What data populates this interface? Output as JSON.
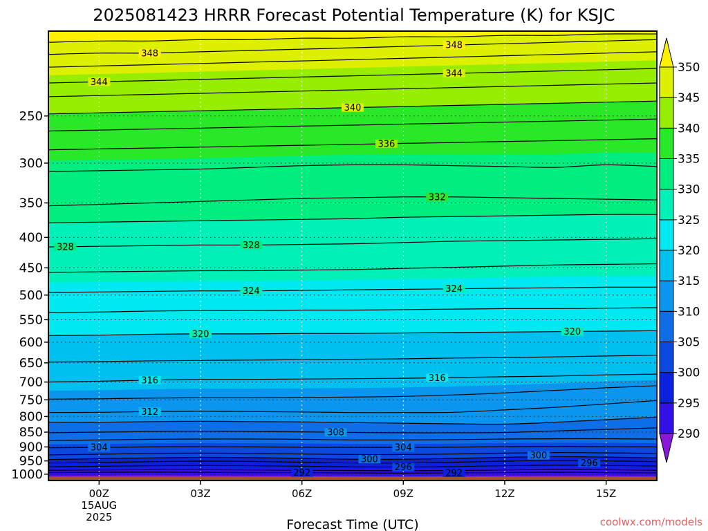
{
  "chart_data": {
    "type": "heatmap",
    "title": "2025081423 HRRR Forecast Potential Temperature (K) for KSJC",
    "xlabel": "Forecast Time (UTC)",
    "ylabel": "",
    "credit": "coolwx.com/models",
    "x_unit": "forecast hour",
    "xlim": [
      -1.5,
      16.5
    ],
    "x_ticks": [
      {
        "value": 0,
        "label": "00Z",
        "sublabels": [
          "15AUG",
          "2025"
        ]
      },
      {
        "value": 3,
        "label": "03Z"
      },
      {
        "value": 6,
        "label": "06Z"
      },
      {
        "value": 9,
        "label": "09Z"
      },
      {
        "value": 12,
        "label": "12Z"
      },
      {
        "value": 15,
        "label": "15Z"
      }
    ],
    "y_scale": "log-pressure",
    "y_unit": "hPa",
    "ylim": [
      1025,
      180
    ],
    "y_ticks": [
      250,
      300,
      350,
      400,
      450,
      500,
      550,
      600,
      650,
      700,
      750,
      800,
      850,
      900,
      950,
      1000
    ],
    "grid": true,
    "ground_pressure": 1010,
    "ground_color": "#a0522d",
    "colorbar": {
      "placement": "right",
      "levels": [
        290,
        295,
        300,
        305,
        310,
        315,
        320,
        325,
        330,
        335,
        340,
        345,
        350
      ],
      "colors": [
        "#8a18d8",
        "#3410e8",
        "#0a22e0",
        "#0a48e0",
        "#0e6ee8",
        "#0a96ee",
        "#00c0f0",
        "#00e8f0",
        "#00f0b8",
        "#00ee80",
        "#28e828",
        "#98ee00",
        "#dcf000",
        "#fff000"
      ],
      "extend": "both"
    },
    "times": [
      -1.5,
      0,
      1.5,
      3,
      4.5,
      6,
      7.5,
      9,
      10.5,
      12,
      13.5,
      15,
      16.5
    ],
    "isentropes": [
      {
        "theta": 292,
        "label": true,
        "p": [
          994,
          993,
          992,
          993,
          994,
          994,
          995,
          996,
          995,
          994,
          993,
          994,
          995
        ]
      },
      {
        "theta": 294,
        "label": false,
        "p": [
          985,
          984,
          983,
          983,
          984,
          985,
          986,
          987,
          986,
          984,
          982,
          983,
          985
        ]
      },
      {
        "theta": 296,
        "label": true,
        "p": [
          972,
          970,
          968,
          967,
          968,
          970,
          972,
          973,
          971,
          968,
          966,
          967,
          969
        ]
      },
      {
        "theta": 298,
        "label": false,
        "p": [
          958,
          956,
          953,
          951,
          952,
          955,
          958,
          958,
          955,
          951,
          948,
          950,
          953
        ]
      },
      {
        "theta": 300,
        "label": true,
        "p": [
          945,
          942,
          939,
          937,
          938,
          941,
          944,
          944,
          941,
          937,
          934,
          936,
          939
        ]
      },
      {
        "theta": 302,
        "label": false,
        "p": [
          928,
          926,
          923,
          922,
          923,
          925,
          927,
          927,
          925,
          922,
          920,
          921,
          923
        ]
      },
      {
        "theta": 304,
        "label": true,
        "p": [
          903,
          902,
          900,
          899,
          900,
          901,
          902,
          902,
          901,
          899,
          898,
          899,
          900
        ]
      },
      {
        "theta": 306,
        "label": false,
        "p": [
          878,
          876,
          874,
          873,
          873,
          874,
          876,
          876,
          875,
          873,
          872,
          872,
          873
        ]
      },
      {
        "theta": 308,
        "label": true,
        "p": [
          852,
          850,
          848,
          847,
          848,
          849,
          851,
          852,
          852,
          851,
          846,
          841,
          836
        ]
      },
      {
        "theta": 310,
        "label": false,
        "p": [
          818,
          818,
          816,
          815,
          816,
          817,
          819,
          821,
          823,
          824,
          818,
          810,
          802
        ]
      },
      {
        "theta": 312,
        "label": true,
        "p": [
          788,
          787,
          785,
          784,
          785,
          786,
          788,
          788,
          787,
          780,
          772,
          762,
          752
        ]
      },
      {
        "theta": 314,
        "label": false,
        "p": [
          748,
          747,
          745,
          744,
          744,
          743,
          742,
          740,
          736,
          730,
          723,
          716,
          710
        ]
      },
      {
        "theta": 316,
        "label": true,
        "p": [
          700,
          698,
          695,
          693,
          693,
          692,
          691,
          690,
          688,
          686,
          684,
          681,
          679
        ]
      },
      {
        "theta": 318,
        "label": false,
        "p": [
          648,
          647,
          645,
          644,
          643,
          642,
          641,
          640,
          638,
          637,
          635,
          633,
          631
        ]
      },
      {
        "theta": 320,
        "label": true,
        "p": [
          585,
          584,
          582,
          581,
          581,
          580,
          580,
          579,
          578,
          577,
          576,
          575,
          574
        ]
      },
      {
        "theta": 322,
        "label": false,
        "p": [
          535,
          534,
          532,
          531,
          531,
          530,
          530,
          529,
          528,
          527,
          527,
          526,
          525
        ]
      },
      {
        "theta": 324,
        "label": true,
        "p": [
          495,
          494,
          493,
          492,
          492,
          491,
          490,
          489,
          488,
          487,
          486,
          485,
          485
        ]
      },
      {
        "theta": 326,
        "label": false,
        "p": [
          458,
          457,
          456,
          455,
          455,
          454,
          453,
          451,
          449,
          447,
          445,
          444,
          443
        ]
      },
      {
        "theta": 328,
        "label": true,
        "p": [
          415,
          414,
          413,
          412,
          412,
          411,
          410,
          408,
          406,
          405,
          404,
          403,
          402
        ]
      },
      {
        "theta": 330,
        "label": false,
        "p": [
          378,
          377,
          376,
          375,
          374,
          373,
          372,
          370,
          369,
          368,
          367,
          366,
          366
        ]
      },
      {
        "theta": 332,
        "label": true,
        "p": [
          354,
          352,
          350,
          348,
          346,
          344,
          343,
          342,
          342,
          343,
          344,
          345,
          346
        ]
      },
      {
        "theta": 334,
        "label": false,
        "p": [
          310,
          309,
          308,
          307,
          305,
          303,
          302,
          302,
          303,
          304,
          305,
          302,
          304
        ]
      },
      {
        "theta": 336,
        "label": true,
        "p": [
          285,
          284,
          283,
          282,
          281,
          280,
          279,
          278,
          277,
          276,
          275,
          274,
          273
        ]
      },
      {
        "theta": 338,
        "label": false,
        "p": [
          265,
          264,
          263,
          262,
          261,
          260,
          259,
          258,
          257,
          256,
          255,
          254,
          253
        ]
      },
      {
        "theta": 340,
        "label": true,
        "p": [
          248,
          247,
          246,
          245,
          244,
          243,
          242,
          241,
          240,
          239,
          238,
          237,
          236
        ]
      },
      {
        "theta": 342,
        "label": false,
        "p": [
          232,
          231,
          230,
          229,
          228,
          227,
          226,
          225,
          224,
          223,
          222,
          221,
          220
        ]
      },
      {
        "theta": 344,
        "label": true,
        "p": [
          220,
          219,
          218,
          217,
          216,
          215,
          214,
          213,
          212,
          211,
          210,
          209,
          208
        ]
      },
      {
        "theta": 346,
        "label": false,
        "p": [
          207,
          206,
          205,
          204,
          203,
          202,
          201,
          200,
          199,
          198,
          197,
          196,
          195
        ]
      },
      {
        "theta": 348,
        "label": true,
        "p": [
          197,
          196,
          196,
          195,
          194,
          193,
          192,
          191,
          190,
          189,
          188,
          187,
          186
        ]
      },
      {
        "theta": 350,
        "label": false,
        "p": [
          188,
          187,
          187,
          186,
          186,
          185,
          185,
          184,
          184,
          183,
          183,
          182,
          182
        ]
      }
    ],
    "label_positions": [
      {
        "theta": 348,
        "x": [
          1.5,
          10.5
        ]
      },
      {
        "theta": 344,
        "x": [
          0,
          10.5
        ]
      },
      {
        "theta": 340,
        "x": [
          7.5
        ]
      },
      {
        "theta": 336,
        "x": [
          8.5
        ]
      },
      {
        "theta": 332,
        "x": [
          10
        ]
      },
      {
        "theta": 328,
        "x": [
          -1,
          4.5
        ]
      },
      {
        "theta": 324,
        "x": [
          4.5,
          10.5
        ]
      },
      {
        "theta": 320,
        "x": [
          3,
          14
        ]
      },
      {
        "theta": 316,
        "x": [
          1.5,
          10
        ]
      },
      {
        "theta": 312,
        "x": [
          1.5
        ]
      },
      {
        "theta": 308,
        "x": [
          7
        ]
      },
      {
        "theta": 304,
        "x": [
          0,
          9
        ]
      },
      {
        "theta": 300,
        "x": [
          8
        ],
        "extra": [
          {
            "x": 13,
            "p": 930
          }
        ]
      },
      {
        "theta": 296,
        "x": [
          9
        ],
        "extra": [
          {
            "x": 14.5,
            "p": 958
          }
        ]
      },
      {
        "theta": 292,
        "x": [
          6,
          10.5
        ]
      }
    ]
  }
}
